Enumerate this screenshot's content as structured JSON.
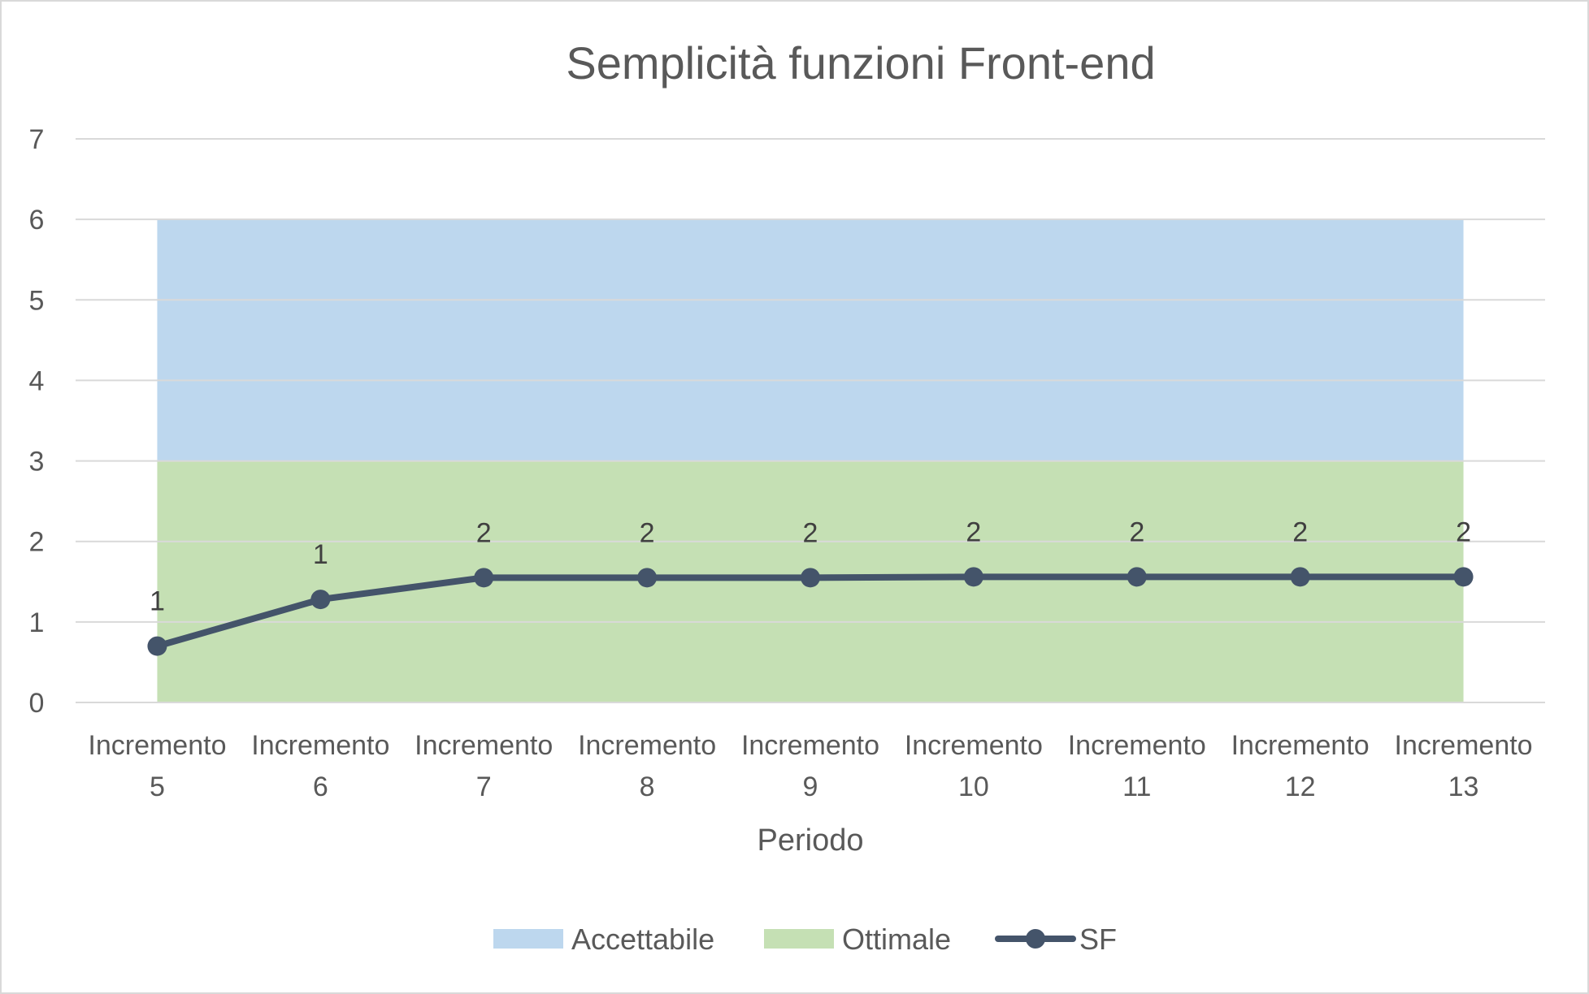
{
  "chart_data": {
    "type": "line",
    "title": "Semplicità funzioni Front-end",
    "xlabel": "Periodo",
    "ylabel": "",
    "ylim": [
      0,
      7
    ],
    "yticks": [
      "0",
      "1",
      "2",
      "3",
      "4",
      "5",
      "6",
      "7"
    ],
    "categories": [
      [
        "Incremento",
        "5"
      ],
      [
        "Incremento",
        "6"
      ],
      [
        "Incremento",
        "7"
      ],
      [
        "Incremento",
        "8"
      ],
      [
        "Incremento",
        "9"
      ],
      [
        "Incremento",
        "10"
      ],
      [
        "Incremento",
        "11"
      ],
      [
        "Incremento",
        "12"
      ],
      [
        "Incremento",
        "13"
      ]
    ],
    "grid": true,
    "legend_position": "bottom",
    "bands": [
      {
        "name": "Accettabile",
        "from": 3,
        "to": 6,
        "color": "#bdd7ee"
      },
      {
        "name": "Ottimale",
        "from": 0,
        "to": 3,
        "color": "#c5e0b4"
      }
    ],
    "series": [
      {
        "name": "SF",
        "color": "#44546a",
        "values": [
          0.7,
          1.28,
          1.55,
          1.55,
          1.55,
          1.56,
          1.56,
          1.56,
          1.56
        ],
        "data_labels": [
          "1",
          "1",
          "2",
          "2",
          "2",
          "2",
          "2",
          "2",
          "2"
        ]
      }
    ],
    "colors": {
      "grid": "#d9d9d9",
      "text": "#595959"
    }
  }
}
